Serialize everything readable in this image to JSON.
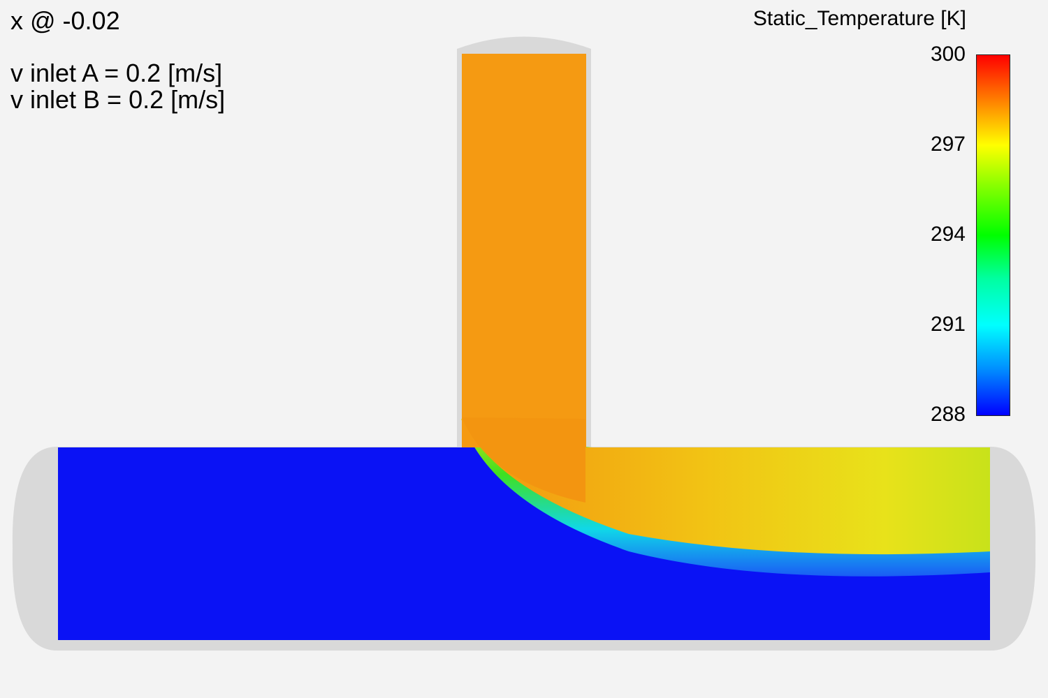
{
  "annotations": {
    "slice_label": "x @ -0.02",
    "inlet_a": "v inlet A = 0.2 [m/s]",
    "inlet_b": "v inlet B = 0.2 [m/s]"
  },
  "legend": {
    "title": "Static_Temperature [K]",
    "ticks": [
      "300",
      "297",
      "294",
      "291",
      "288"
    ],
    "min": 288,
    "max": 300,
    "colormap": [
      "#ff0000",
      "#ff7a00",
      "#ffff00",
      "#80ff00",
      "#00ff00",
      "#00ffa0",
      "#00ffff",
      "#0090ff",
      "#0000ff"
    ]
  },
  "colors": {
    "cold_fluid": "#0a12f5",
    "hot_fluid": "#f59a12",
    "pipe_wall": "#d9d9d9",
    "background": "#f3f3f3"
  }
}
